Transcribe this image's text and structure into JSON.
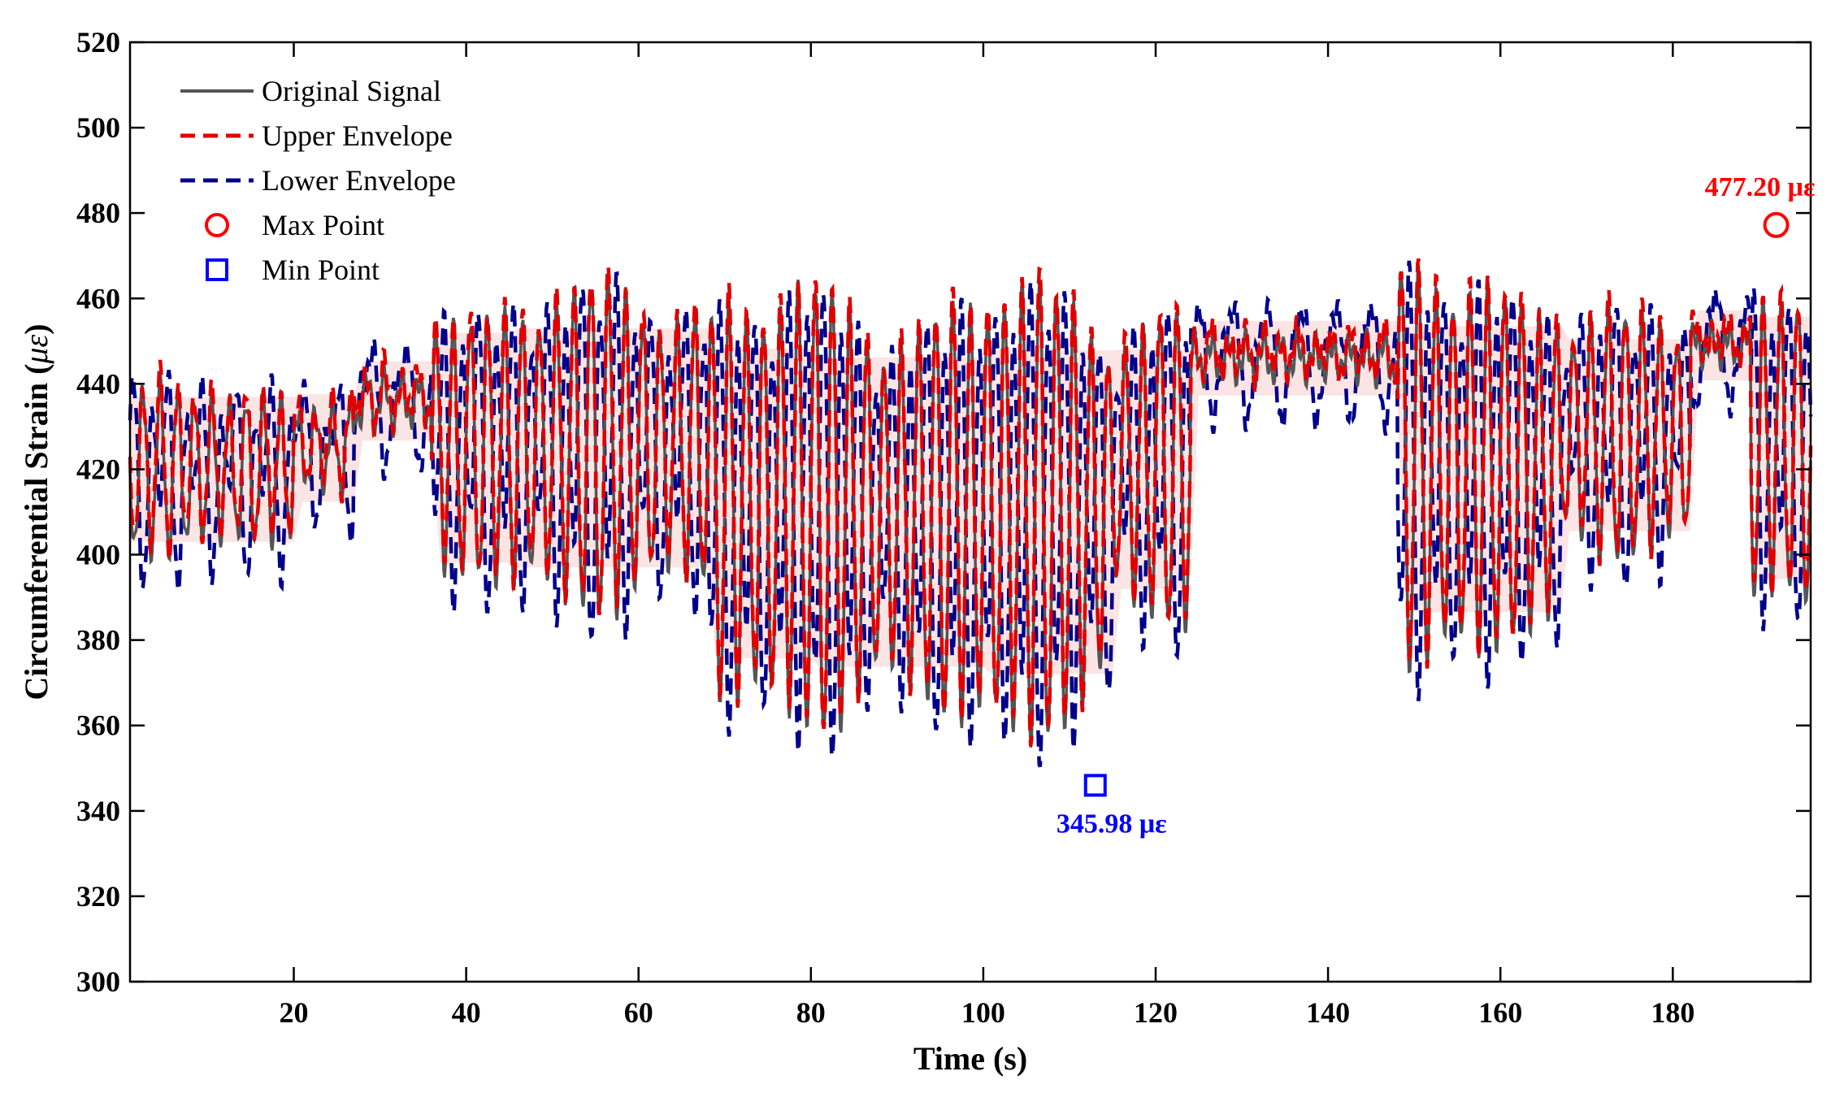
{
  "chart_data": {
    "type": "line",
    "xlabel": "Time (s)",
    "ylabel": "Circumferential Strain (",
    "ylabel_unit": "με",
    "ylabel_close": ")",
    "xlim": [
      1,
      196
    ],
    "ylim": [
      300,
      520
    ],
    "xticks": [
      20,
      40,
      60,
      80,
      100,
      120,
      140,
      160,
      180
    ],
    "yticks": [
      300,
      320,
      340,
      360,
      380,
      400,
      420,
      440,
      460,
      480,
      500,
      520
    ],
    "grid": false,
    "legend_position": "top-left",
    "legend": [
      {
        "label": "Original Signal",
        "kind": "line-solid",
        "color": "#555555"
      },
      {
        "label": "Upper Envelope",
        "kind": "line-dashed",
        "color": "#e00000"
      },
      {
        "label": "Lower Envelope",
        "kind": "line-dashed",
        "color": "#00008b"
      },
      {
        "label": "Max Point",
        "kind": "circle",
        "color": "#ff0000"
      },
      {
        "label": "Min Point",
        "kind": "square",
        "color": "#0000ff"
      }
    ],
    "max_point": {
      "x": 192,
      "y": 477.2,
      "label": "477.20 με"
    },
    "min_point": {
      "x": 113,
      "y": 345.98,
      "label": "345.98 με"
    },
    "segments": [
      {
        "t0": 1,
        "t1": 20,
        "mean": 420,
        "amp": 20
      },
      {
        "t0": 20,
        "t1": 27,
        "mean": 425,
        "amp": 12
      },
      {
        "t0": 27,
        "t1": 36,
        "mean": 436,
        "amp": 6
      },
      {
        "t0": 36,
        "t1": 45,
        "mean": 425,
        "amp": 38
      },
      {
        "t0": 45,
        "t1": 68,
        "mean": 425,
        "amp": 40
      },
      {
        "t0": 68,
        "t1": 80,
        "mean": 412,
        "amp": 55
      },
      {
        "t0": 80,
        "t1": 100,
        "mean": 410,
        "amp": 55
      },
      {
        "t0": 100,
        "t1": 115,
        "mean": 410,
        "amp": 58
      },
      {
        "t0": 115,
        "t1": 124,
        "mean": 420,
        "amp": 40
      },
      {
        "t0": 124,
        "t1": 148,
        "mean": 446,
        "amp": 5
      },
      {
        "t0": 148,
        "t1": 167,
        "mean": 420,
        "amp": 50
      },
      {
        "t0": 167,
        "t1": 182,
        "mean": 428,
        "amp": 30
      },
      {
        "t0": 182,
        "t1": 189,
        "mean": 449,
        "amp": 4
      },
      {
        "t0": 189,
        "t1": 196,
        "mean": 425,
        "amp": 45
      }
    ],
    "period_s": 2.0
  }
}
